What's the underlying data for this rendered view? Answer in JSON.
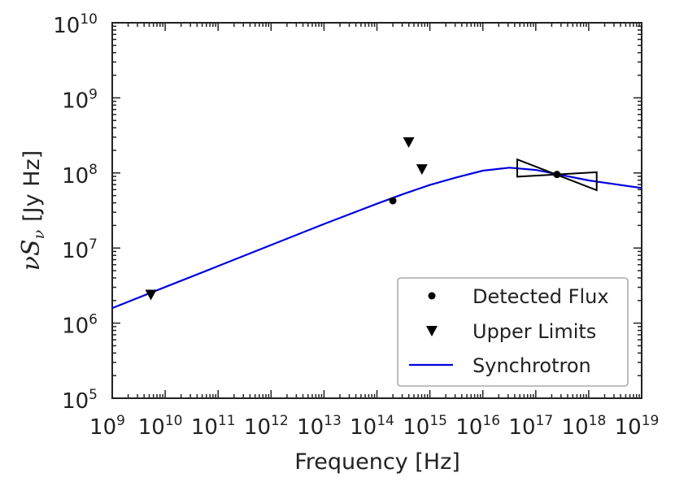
{
  "chart_data": {
    "type": "scatter",
    "title": "",
    "xlabel": "Frequency [Hz]",
    "ylabel": {
      "main": "νS",
      "sub": "ν",
      "units": "[Jy Hz]"
    },
    "xscale": "log",
    "yscale": "log",
    "xlim_exp": [
      9,
      19
    ],
    "ylim_exp": [
      5,
      10
    ],
    "x_ticks": [
      {
        "base": "10",
        "exp": "9",
        "value": 9
      },
      {
        "base": "10",
        "exp": "10",
        "value": 10
      },
      {
        "base": "10",
        "exp": "11",
        "value": 11
      },
      {
        "base": "10",
        "exp": "12",
        "value": 12
      },
      {
        "base": "10",
        "exp": "13",
        "value": 13
      },
      {
        "base": "10",
        "exp": "14",
        "value": 14
      },
      {
        "base": "10",
        "exp": "15",
        "value": 15
      },
      {
        "base": "10",
        "exp": "16",
        "value": 16
      },
      {
        "base": "10",
        "exp": "17",
        "value": 17
      },
      {
        "base": "10",
        "exp": "18",
        "value": 18
      },
      {
        "base": "10",
        "exp": "19",
        "value": 19
      }
    ],
    "y_ticks": [
      {
        "base": "10",
        "exp": "5",
        "value": 5
      },
      {
        "base": "10",
        "exp": "6",
        "value": 6
      },
      {
        "base": "10",
        "exp": "7",
        "value": 7
      },
      {
        "base": "10",
        "exp": "8",
        "value": 8
      },
      {
        "base": "10",
        "exp": "9",
        "value": 9
      },
      {
        "base": "10",
        "exp": "10",
        "value": 10
      }
    ],
    "detected_flux": [
      {
        "log_nu": 14.3,
        "log_nuSnu": 7.63
      },
      {
        "log_nu": 17.4,
        "log_nuSnu": 7.98
      }
    ],
    "upper_limits": [
      {
        "log_nu": 9.73,
        "log_nuSnu": 6.38
      },
      {
        "log_nu": 14.6,
        "log_nuSnu": 8.41
      },
      {
        "log_nu": 14.85,
        "log_nuSnu": 8.05
      }
    ],
    "synchrotron_curve": [
      [
        9.0,
        6.2
      ],
      [
        10.0,
        6.48
      ],
      [
        11.0,
        6.76
      ],
      [
        12.0,
        7.04
      ],
      [
        13.0,
        7.32
      ],
      [
        14.0,
        7.59
      ],
      [
        14.5,
        7.72
      ],
      [
        15.0,
        7.84
      ],
      [
        15.5,
        7.94
      ],
      [
        16.0,
        8.03
      ],
      [
        16.5,
        8.07
      ],
      [
        17.0,
        8.04
      ],
      [
        17.5,
        7.97
      ],
      [
        18.0,
        7.9
      ],
      [
        18.5,
        7.85
      ],
      [
        19.0,
        7.8
      ]
    ],
    "bowtie": {
      "log_nu_min": 16.65,
      "log_nu_max": 18.15,
      "pivot_log_nu": 17.4,
      "pivot_log_nuSnu": 7.98,
      "left_top": 8.18,
      "left_bottom": 7.95,
      "right_top": 8.01,
      "right_bottom": 7.77
    },
    "legend": {
      "position": "lower-right",
      "entries": [
        {
          "label": "Detected Flux",
          "marker": "circle",
          "color": "#000000"
        },
        {
          "label": "Upper Limits",
          "marker": "triangle-down",
          "color": "#000000"
        },
        {
          "label": "Synchrotron",
          "marker": "line",
          "color": "#0000dd"
        }
      ]
    },
    "colors": {
      "curve": "#0000dd",
      "markers": "#000000",
      "axes": "#222222"
    }
  }
}
